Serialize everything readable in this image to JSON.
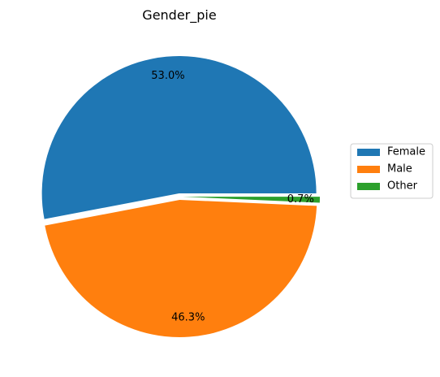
{
  "chart_data": {
    "type": "pie",
    "title": "Gender_pie",
    "labels": [
      "Female",
      "Male",
      "Other"
    ],
    "values": [
      53.0,
      46.3,
      0.7
    ],
    "percent_labels": [
      "53.0%",
      "46.3%",
      "0.7%"
    ],
    "colors": [
      "#1f77b4",
      "#ff7f0e",
      "#2ca02c"
    ],
    "explode": true,
    "legend_placement": "center-right"
  }
}
